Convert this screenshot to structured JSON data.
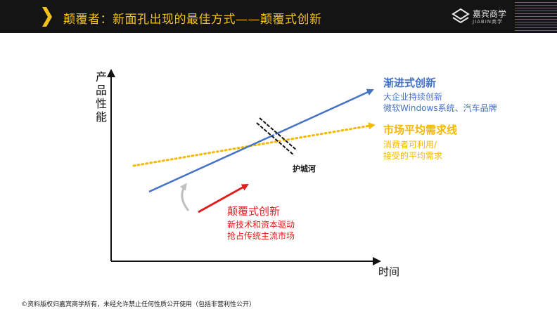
{
  "header": {
    "title": "颠覆者：新面孔出现的最佳方式——颠覆式创新",
    "logo_cn": "嘉宾商学",
    "logo_en": "JIABIN商学"
  },
  "axes": {
    "y_label": [
      "产",
      "品",
      "性",
      "能"
    ],
    "x_label": "时间"
  },
  "incremental": {
    "title": "渐进式创新",
    "line1": "大企业持续创新",
    "line2": "微软Windows系统、汽车品牌"
  },
  "market": {
    "title": "市场平均需求线",
    "line1": "消费者可利用/",
    "line2": "接受的平均需求"
  },
  "moat": {
    "label": "护城河"
  },
  "disruptive": {
    "title": "颠覆式创新",
    "line1": "新技术和资本驱动",
    "line2": "抢占传统主流市场"
  },
  "footer": {
    "text": "©资料版权归嘉宾商学所有，未经允许禁止任何性质公开使用（包括非营利性公开）"
  },
  "colors": {
    "header_bg": "#141414",
    "header_title": "#f2c21a",
    "incremental": "#4472c4",
    "market": "#f5b800",
    "disruptive": "#e31b1b",
    "curve_arrow": "#bfbfbf"
  }
}
